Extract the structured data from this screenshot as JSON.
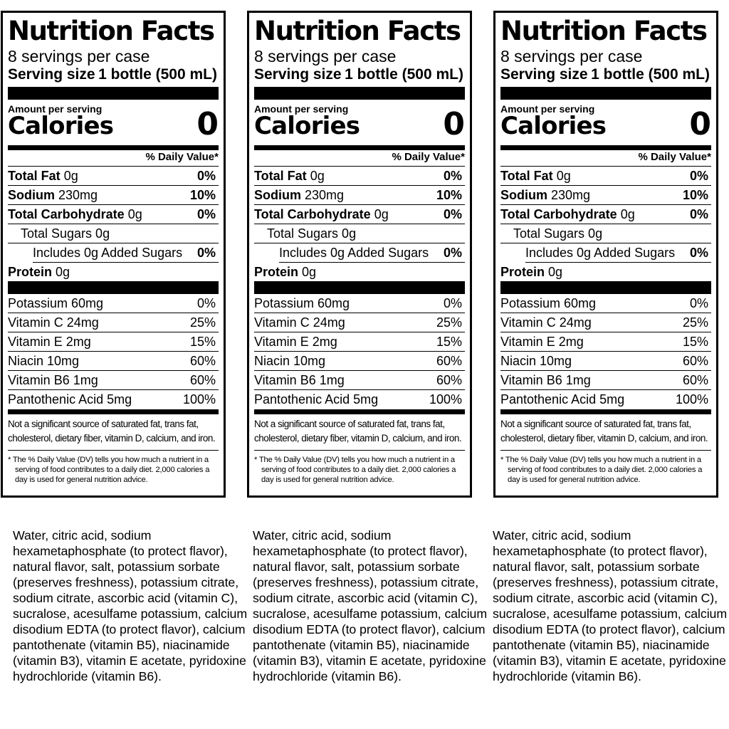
{
  "label": {
    "title": "Nutrition Facts",
    "servings_per_container": "8 servings per case",
    "serving_size_label": "Serving size",
    "serving_size_value": "1 bottle (500 mL)",
    "amount_per_serving": "Amount per serving",
    "calories_label": "Calories",
    "calories_value": "0",
    "daily_value_header": "% Daily Value*",
    "nutrients": [
      {
        "name": "Total Fat",
        "amount": "0g",
        "dv": "0%"
      },
      {
        "name": "Sodium",
        "amount": "230mg",
        "dv": "10%"
      },
      {
        "name": "Total Carbohydrate",
        "amount": "0g",
        "dv": "0%"
      },
      {
        "name": "Total Sugars 0g",
        "amount": "",
        "dv": ""
      },
      {
        "name": "Includes 0g Added Sugars",
        "amount": "",
        "dv": "0%"
      },
      {
        "name": "Protein",
        "amount": "0g",
        "dv": ""
      }
    ],
    "vitamins": [
      {
        "name": "Potassium 60mg",
        "dv": "0%"
      },
      {
        "name": "Vitamin C 24mg",
        "dv": "25%"
      },
      {
        "name": "Vitamin E 2mg",
        "dv": "15%"
      },
      {
        "name": "Niacin 10mg",
        "dv": "60%"
      },
      {
        "name": "Vitamin B6 1mg",
        "dv": "60%"
      },
      {
        "name": "Pantothenic Acid 5mg",
        "dv": "100%"
      }
    ],
    "not_significant_note": "Not a significant source of saturated fat, trans fat, cholesterol, dietary fiber, vitamin D, calcium, and iron.",
    "dv_footnote": "* The % Daily Value (DV) tells you how much a nutrient in a serving of food contributes to a daily diet. 2,000 calories a day is used for general nutrition advice."
  },
  "ingredients": "Water, citric acid, sodium hexametaphosphate (to protect flavor), natural flavor, salt, potassium sorbate (preserves freshness), potassium citrate, sodium citrate, ascorbic acid (vitamin C), sucralose, acesulfame potassium, calcium disodium EDTA (to protect flavor), calcium pantothenate (vitamin B5), niacinamide (vitamin B3), vitamin E acetate, pyridoxine hydrochloride (vitamin B6)."
}
